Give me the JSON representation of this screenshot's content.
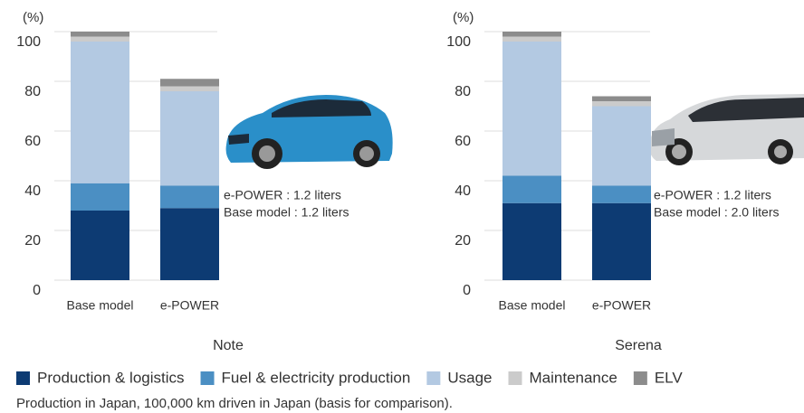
{
  "chart_data": [
    {
      "type": "stacked-bar",
      "title": "Note",
      "y_label": "(%)",
      "categories": [
        "Base model",
        "e-POWER"
      ],
      "series": [
        {
          "name": "Production & logistics",
          "color": "#0d3b73",
          "values": [
            28,
            29
          ]
        },
        {
          "name": "Fuel & electricity production",
          "color": "#4b8fc3",
          "values": [
            11,
            9
          ]
        },
        {
          "name": "Usage",
          "color": "#b3c9e2",
          "values": [
            57,
            38
          ]
        },
        {
          "name": "Maintenance",
          "color": "#cbcbcb",
          "values": [
            2,
            2
          ]
        },
        {
          "name": "ELV",
          "color": "#8c8c8c",
          "values": [
            2,
            3
          ]
        }
      ],
      "ylim": [
        0,
        100
      ],
      "yticks": [
        0,
        20,
        40,
        60,
        80,
        100
      ],
      "grid": true,
      "annotations": [
        "e-POWER : 1.2 liters",
        "Base model : 1.2 liters"
      ]
    },
    {
      "type": "stacked-bar",
      "title": "Serena",
      "y_label": "(%)",
      "categories": [
        "Base model",
        "e-POWER"
      ],
      "series": [
        {
          "name": "Production & logistics",
          "color": "#0d3b73",
          "values": [
            31,
            31
          ]
        },
        {
          "name": "Fuel & electricity production",
          "color": "#4b8fc3",
          "values": [
            11,
            7
          ]
        },
        {
          "name": "Usage",
          "color": "#b3c9e2",
          "values": [
            54,
            32
          ]
        },
        {
          "name": "Maintenance",
          "color": "#cbcbcb",
          "values": [
            2,
            2
          ]
        },
        {
          "name": "ELV",
          "color": "#8c8c8c",
          "values": [
            2,
            2
          ]
        }
      ],
      "ylim": [
        0,
        100
      ],
      "yticks": [
        0,
        20,
        40,
        60,
        80,
        100
      ],
      "grid": true,
      "annotations": [
        "e-POWER : 1.2 liters",
        "Base model : 2.0 liters"
      ]
    }
  ],
  "footnote": "Production in Japan, 100,000 km driven in Japan (basis for comparison)."
}
